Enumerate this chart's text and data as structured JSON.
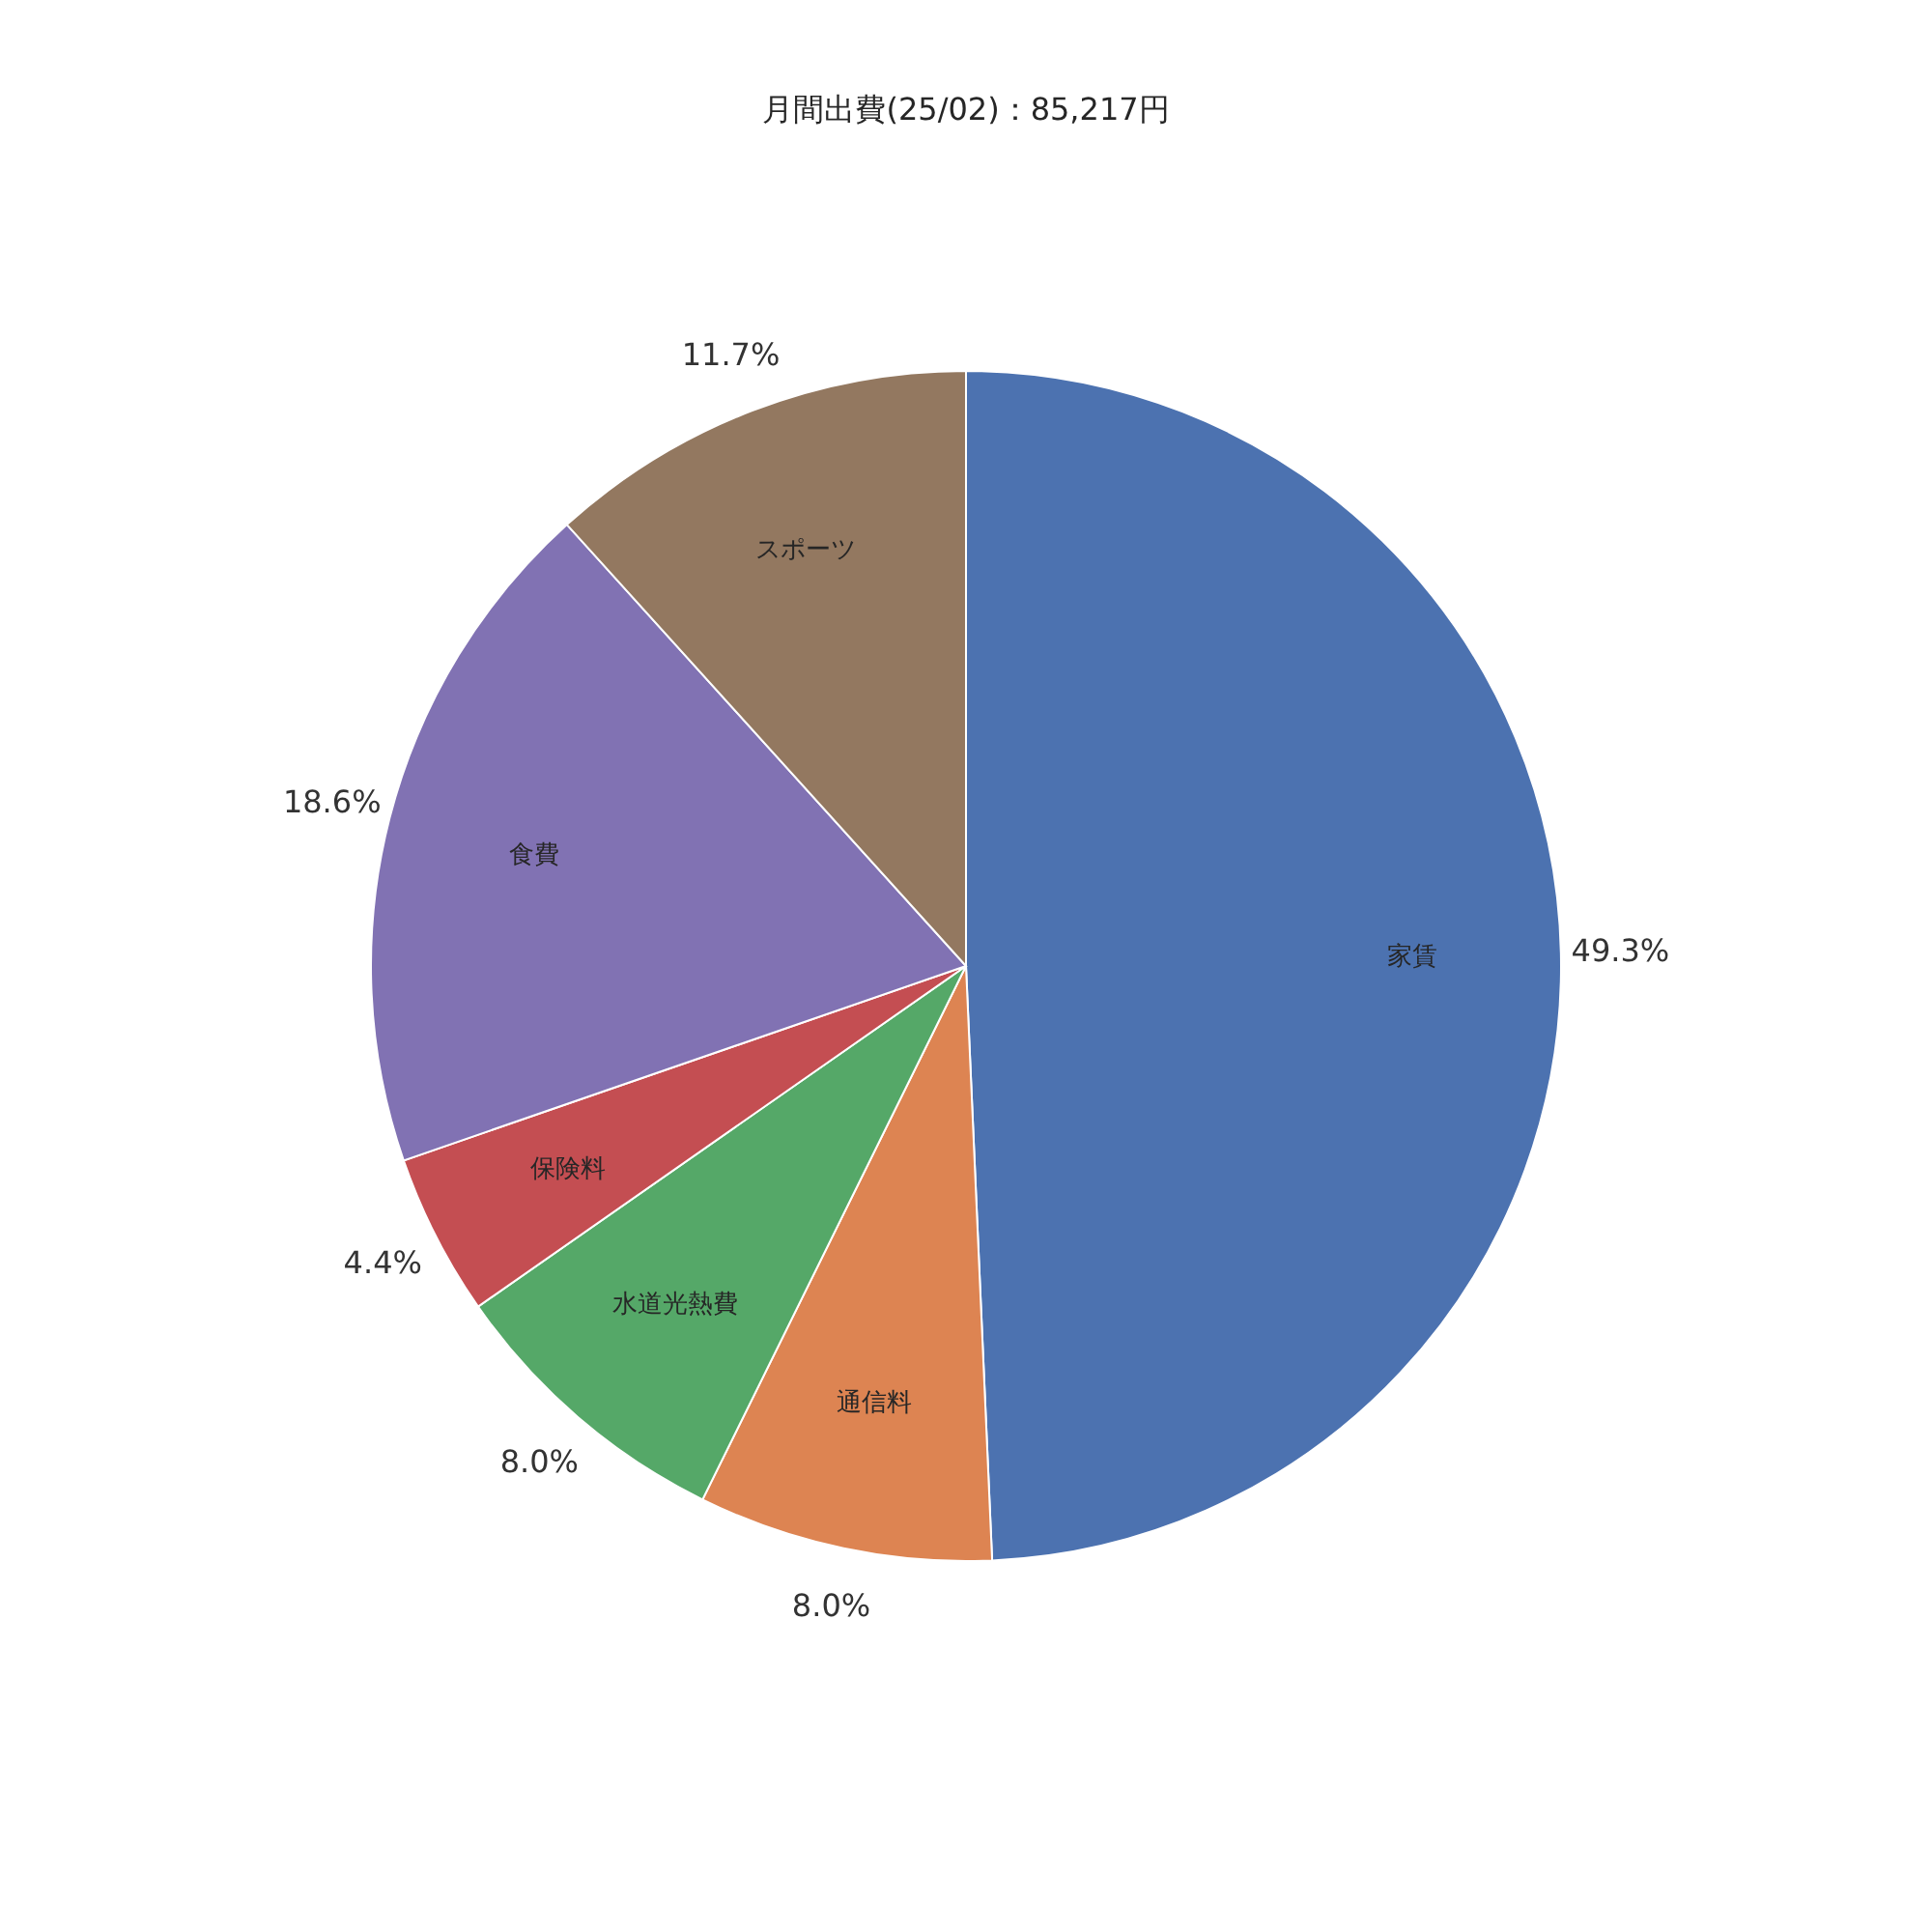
{
  "chart_data": {
    "type": "pie",
    "title": "月間出費(25/02)：85,217円",
    "categories": [
      "家賃",
      "通信料",
      "水道光熱費",
      "保険料",
      "食費",
      "スポーツ"
    ],
    "values": [
      49.3,
      8.0,
      8.0,
      4.4,
      18.6,
      11.7
    ],
    "colors": [
      "#4c72b0",
      "#dd8452",
      "#55a868",
      "#c44e52",
      "#8172b3",
      "#937860"
    ],
    "value_labels": [
      "49.3%",
      "8.0%",
      "8.0%",
      "4.4%",
      "18.6%",
      "11.7%"
    ],
    "legend": false
  }
}
